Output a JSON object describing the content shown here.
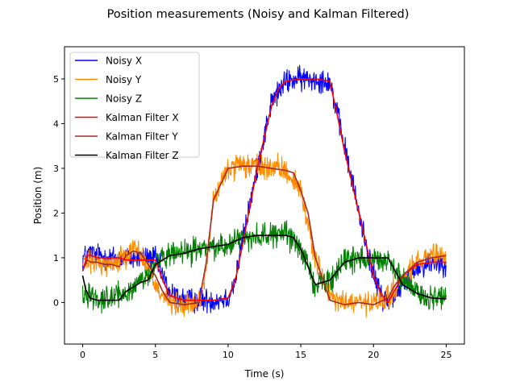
{
  "chart_data": {
    "type": "line",
    "title": "Position measurements (Noisy and Kalman Filtered)",
    "xlabel": "Time (s)",
    "ylabel": "Position (m)",
    "xlim": [
      -1.25,
      26.25
    ],
    "ylim": [
      -0.93,
      5.72
    ],
    "xticks": [
      0,
      5,
      10,
      15,
      20,
      25
    ],
    "yticks": [
      0,
      1,
      2,
      3,
      4,
      5
    ],
    "grid": false,
    "legend_position": "upper-left",
    "series": [
      {
        "name": "Noisy X",
        "color": "#0000ff",
        "noise_amplitude": 0.2,
        "x": [
          0,
          0.5,
          1,
          2,
          3,
          4,
          5,
          5.5,
          6,
          7,
          8,
          9,
          10,
          10.5,
          11,
          12,
          13,
          14,
          15,
          16,
          17,
          18,
          19,
          20,
          20.5,
          21,
          22,
          23,
          24,
          25
        ],
        "y": [
          1,
          1.1,
          1.05,
          1,
          1,
          1,
          1,
          0.6,
          0.2,
          0.05,
          0.05,
          0.05,
          0.1,
          0.5,
          1.4,
          3,
          4.5,
          4.95,
          5,
          5,
          4.95,
          3.5,
          2,
          0.6,
          0.2,
          0,
          0.4,
          0.8,
          0.9,
          0.9
        ]
      },
      {
        "name": "Noisy Y",
        "color": "#ff8c00",
        "noise_amplitude": 0.2,
        "x": [
          0,
          1,
          2,
          3,
          3.5,
          4,
          5,
          5.5,
          6,
          7,
          8,
          8.5,
          9,
          10,
          11,
          12,
          13,
          14,
          15,
          16,
          17,
          18,
          19,
          20,
          21,
          22,
          23,
          24,
          25
        ],
        "y": [
          0.9,
          0.9,
          0.85,
          1.1,
          1.25,
          1.1,
          0.4,
          0.2,
          0,
          -0.1,
          0,
          0.8,
          2.3,
          3,
          3.05,
          3.05,
          3,
          2.95,
          2.5,
          1,
          0.1,
          0,
          0,
          -0.05,
          0.1,
          0.5,
          0.9,
          1,
          1.05
        ]
      },
      {
        "name": "Noisy Z",
        "color": "#008000",
        "noise_amplitude": 0.2,
        "x": [
          0,
          0.5,
          1,
          2,
          3,
          4,
          4.5,
          5,
          6,
          7,
          8,
          9,
          10,
          11,
          12,
          13,
          14,
          15,
          15.5,
          16,
          17,
          18,
          19,
          20,
          21,
          22,
          23,
          24,
          25
        ],
        "y": [
          0.2,
          0.2,
          0.1,
          0.1,
          0.2,
          0.5,
          0.6,
          0.9,
          1.05,
          1.1,
          1.2,
          1.25,
          1.3,
          1.45,
          1.5,
          1.5,
          1.55,
          1.2,
          0.8,
          0.4,
          0.5,
          0.9,
          1,
          1,
          0.9,
          0.5,
          0.2,
          0.1,
          0.1
        ]
      },
      {
        "name": "Kalman Filter X",
        "color": "#ff0000",
        "x": [
          0,
          0.3,
          0.6,
          1,
          2,
          2.5,
          3,
          4,
          5,
          5.5,
          6,
          7,
          8,
          9,
          10,
          10.5,
          11,
          12,
          13,
          13.5,
          14,
          15,
          16,
          17,
          17.5,
          18,
          19,
          20,
          20.5,
          21,
          21.5,
          22,
          23,
          24,
          25
        ],
        "y": [
          0.7,
          1.05,
          1.05,
          1,
          1,
          1,
          0.95,
          0.95,
          0.95,
          0.5,
          0.15,
          0.05,
          0.05,
          0.05,
          0.1,
          0.5,
          1.3,
          3,
          4.4,
          4.8,
          4.95,
          5,
          5,
          4.95,
          4.2,
          3.4,
          2,
          0.6,
          0.2,
          0,
          0.3,
          0.6,
          0.85,
          0.9,
          0.9
        ]
      },
      {
        "name": "Kalman Filter Y",
        "color": "#a52a2a",
        "x": [
          0,
          0.3,
          0.6,
          1,
          1.5,
          2,
          2.5,
          3,
          3.5,
          4,
          5,
          5.5,
          6,
          7,
          8,
          8.5,
          9,
          10,
          11,
          12,
          13,
          14,
          14.5,
          15,
          15.5,
          16,
          17,
          18,
          19,
          20,
          21,
          21.5,
          22,
          23,
          24,
          25
        ],
        "y": [
          0.7,
          0.95,
          0.9,
          0.9,
          0.85,
          0.85,
          0.8,
          1.05,
          1.15,
          1.1,
          0.6,
          0.25,
          0,
          -0.05,
          0,
          0.9,
          2.3,
          3,
          3.05,
          3.05,
          3,
          2.95,
          2.9,
          2.5,
          2,
          1,
          0.05,
          -0.05,
          0,
          -0.05,
          0.1,
          0.4,
          0.6,
          0.9,
          1,
          1.05
        ]
      },
      {
        "name": "Kalman Filter Z",
        "color": "#000000",
        "x": [
          0,
          0.2,
          0.5,
          1,
          2,
          2.5,
          3,
          4,
          4.5,
          5,
          6,
          7,
          8,
          9,
          10,
          11,
          12,
          13,
          14,
          14.5,
          15,
          15.5,
          16,
          17,
          18,
          19,
          20,
          21,
          21.5,
          22,
          23,
          24,
          25
        ],
        "y": [
          0.6,
          0.3,
          0.1,
          0.05,
          0.05,
          0.05,
          0.25,
          0.45,
          0.5,
          0.85,
          1.05,
          1.1,
          1.2,
          1.25,
          1.3,
          1.45,
          1.5,
          1.5,
          1.5,
          1.45,
          1.2,
          0.8,
          0.4,
          0.5,
          0.9,
          1,
          1,
          1,
          0.7,
          0.4,
          0.2,
          0.1,
          0.08
        ]
      }
    ]
  }
}
